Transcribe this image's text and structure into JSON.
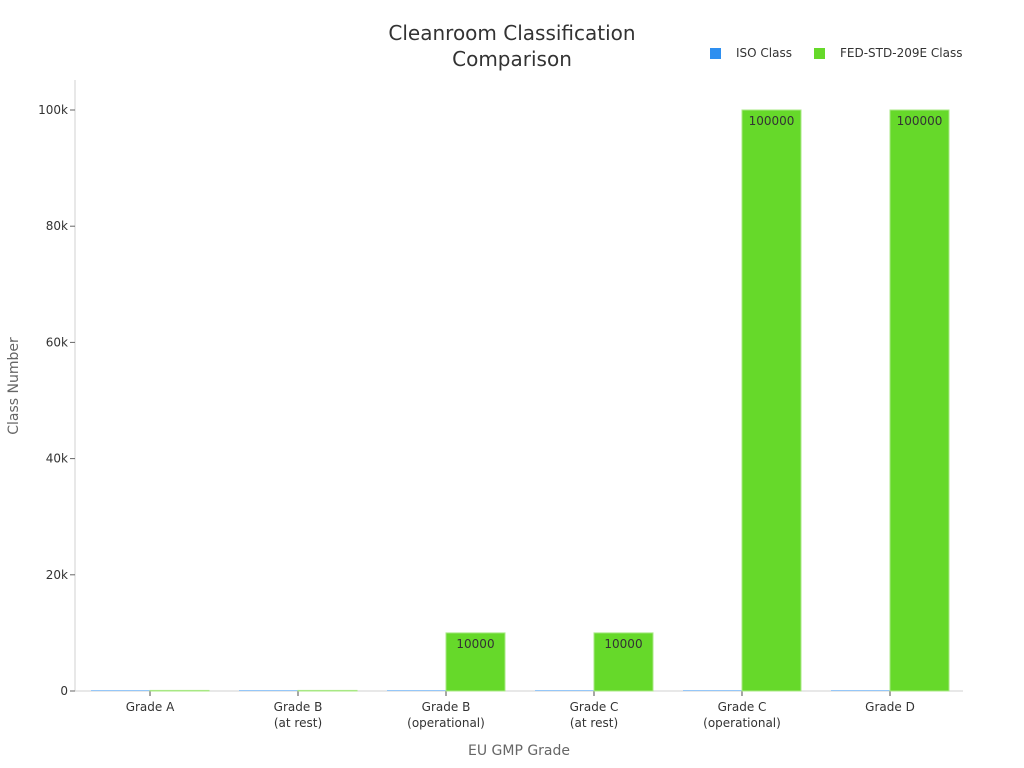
{
  "chart_data": {
    "type": "bar",
    "title": "Cleanroom Classification Comparison",
    "title_lines": [
      "Cleanroom Classification",
      "Comparison"
    ],
    "xlabel": "EU GMP Grade",
    "ylabel": "Class Number",
    "categories": [
      "Grade A",
      "Grade B (at rest)",
      "Grade B (operational)",
      "Grade C (at rest)",
      "Grade C (operational)",
      "Grade D"
    ],
    "category_lines": [
      [
        "Grade A"
      ],
      [
        "Grade B",
        "(at rest)"
      ],
      [
        "Grade B",
        "(operational)"
      ],
      [
        "Grade C",
        "(at rest)"
      ],
      [
        "Grade C",
        "(operational)"
      ],
      [
        "Grade D"
      ]
    ],
    "series": [
      {
        "name": "ISO Class",
        "color": "#2e8ff0",
        "values": [
          5,
          5,
          7,
          7,
          8,
          8
        ]
      },
      {
        "name": "FED-STD-209E Class",
        "color": "#66d92a",
        "values": [
          100,
          100,
          10000,
          10000,
          100000,
          100000
        ]
      }
    ],
    "data_labels": [
      "",
      "",
      "10000",
      "10000",
      "100000",
      "100000"
    ],
    "yticks": [
      0,
      20000,
      40000,
      60000,
      80000,
      100000
    ],
    "ytick_labels": [
      "0",
      "20k",
      "40k",
      "60k",
      "80k",
      "100k"
    ],
    "ylim": [
      0,
      104000
    ],
    "grid": false,
    "legend_position": "top-right"
  },
  "legend": {
    "items": [
      {
        "label": "ISO Class",
        "color": "#2e8ff0"
      },
      {
        "label": "FED-STD-209E Class",
        "color": "#66d92a"
      }
    ]
  }
}
